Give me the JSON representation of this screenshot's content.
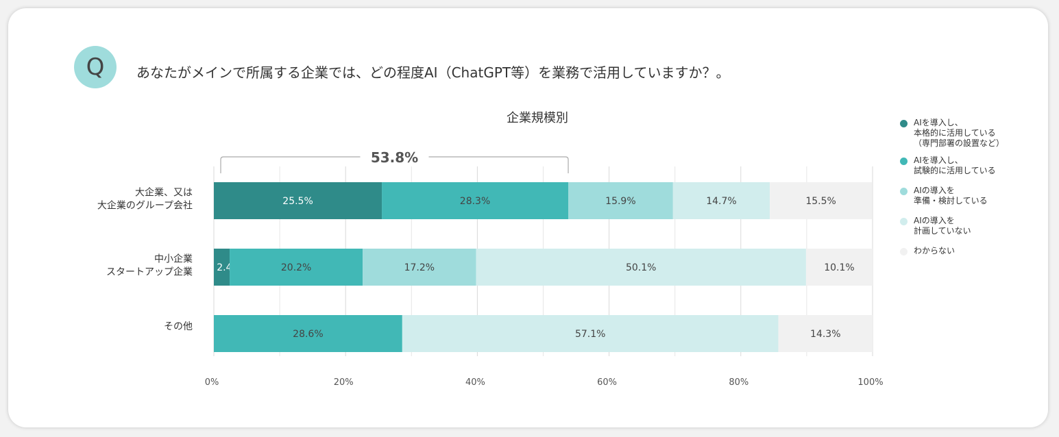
{
  "question": {
    "badge": "Q",
    "text": "あなたがメインで所属する企業では、どの程度AI（ChatGPT等）を業務で活用していますか？。"
  },
  "chart_data": {
    "type": "bar",
    "orientation": "horizontal",
    "stacked": true,
    "title": "企業規模別",
    "categories": [
      "大企業、又は\n大企業のグループ会社",
      "中小企業\nスタートアップ企業",
      "その他"
    ],
    "series": [
      {
        "name": "AIを導入し、\n本格的に活用している\n（専門部署の設置など）",
        "color": "#2f8b89",
        "values": [
          25.5,
          2.4,
          0.0
        ]
      },
      {
        "name": "AIを導入し、\n試験的に活用している",
        "color": "#41b8b6",
        "values": [
          28.3,
          20.2,
          28.6
        ]
      },
      {
        "name": "AIの導入を\n準備・検討している",
        "color": "#9fdcdc",
        "values": [
          15.9,
          17.2,
          0.0
        ]
      },
      {
        "name": "AIの導入を\n計画していない",
        "color": "#d1eded",
        "values": [
          14.7,
          50.1,
          57.1
        ]
      },
      {
        "name": "わからない",
        "color": "#f1f1f1",
        "values": [
          15.5,
          10.1,
          14.3
        ]
      }
    ],
    "label_colors": [
      "#ffffff",
      "#444444",
      "#444444",
      "#444444",
      "#444444"
    ],
    "special_label_colors": {
      "0-0": "#ffffff",
      "1-0": "#ffffff",
      "2-0": "#ffffff"
    },
    "xlim": [
      0,
      100
    ],
    "xticks": [
      "0%",
      "20%",
      "40%",
      "60%",
      "80%",
      "100%"
    ],
    "grid": true,
    "legend_position": "right",
    "annotation": {
      "label": "53.8%",
      "category_index": 0,
      "from": 0,
      "to": 53.8
    }
  }
}
